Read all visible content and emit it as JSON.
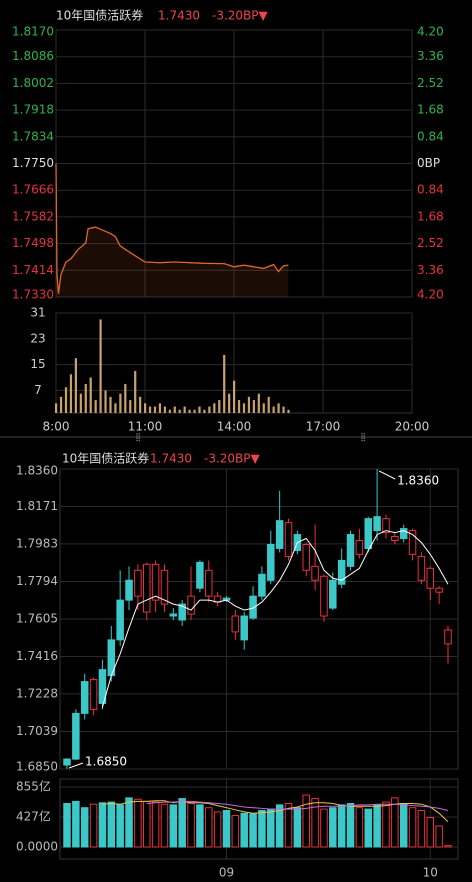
{
  "chart_data": [
    {
      "type": "line",
      "title": "10年国债活跃券",
      "last": "1.7430",
      "change": "-3.20BP▼",
      "x": [
        480,
        482,
        485,
        490,
        500,
        510,
        525,
        540,
        545,
        560,
        575,
        590,
        600,
        610,
        620,
        640,
        660,
        690,
        720,
        780,
        820,
        840,
        860,
        880,
        900,
        920,
        930,
        940,
        950
      ],
      "values": [
        1.775,
        1.74,
        1.734,
        1.74,
        1.744,
        1.745,
        1.748,
        1.75,
        1.7545,
        1.755,
        1.754,
        1.753,
        1.752,
        1.749,
        1.748,
        1.746,
        1.744,
        1.7438,
        1.744,
        1.7436,
        1.7435,
        1.7425,
        1.743,
        1.7425,
        1.742,
        1.7432,
        1.741,
        1.7428,
        1.743
      ],
      "color": "#e0652a",
      "up_color": "#2fb34a",
      "down_color": "#e8323c",
      "grid": true,
      "xlim": [
        480,
        1200
      ],
      "xticks": [
        {
          "value": 480,
          "label": "8:00"
        },
        {
          "value": 660,
          "label": "11:00"
        },
        {
          "value": 840,
          "label": "14:00"
        },
        {
          "value": 1020,
          "label": "17:00"
        },
        {
          "value": 1200,
          "label": "20:00"
        }
      ],
      "ylim": [
        1.733,
        1.817
      ],
      "yticks": [
        {
          "value": 1.817,
          "label": "1.8170"
        },
        1.8086,
        1.8002,
        1.7918,
        1.7834,
        {
          "value": 1.775,
          "label": "1.7750"
        },
        1.7666,
        1.7582,
        1.7498,
        1.7414,
        {
          "value": 1.733,
          "label": "1.7330"
        }
      ],
      "y2lim": [
        -4.2,
        4.2
      ],
      "y2ticks": [
        {
          "value": 4.2,
          "label": "4.20"
        },
        3.36,
        2.52,
        1.68,
        0.84,
        {
          "value": 0,
          "label": "0BP"
        },
        {
          "value": -0.84,
          "label": "0.84"
        },
        {
          "value": -1.68,
          "label": "1.68"
        },
        {
          "value": -2.52,
          "label": "2.52"
        },
        {
          "value": -3.36,
          "label": "3.36"
        },
        {
          "value": -4.2,
          "label": "4.20"
        }
      ]
    },
    {
      "type": "bar",
      "color": "#c9a36c",
      "x": [
        480,
        490,
        500,
        510,
        520,
        530,
        540,
        550,
        560,
        570,
        580,
        590,
        600,
        610,
        620,
        630,
        640,
        650,
        660,
        670,
        680,
        690,
        700,
        710,
        720,
        730,
        740,
        750,
        760,
        770,
        780,
        790,
        800,
        810,
        820,
        830,
        840,
        850,
        860,
        870,
        880,
        890,
        900,
        910,
        920,
        930,
        940,
        950
      ],
      "values": [
        3,
        5,
        8,
        12,
        17,
        6,
        9,
        11,
        4,
        29,
        7,
        5,
        3,
        6,
        9,
        4,
        13,
        5,
        3,
        2,
        2,
        3,
        2,
        1,
        2,
        1,
        2,
        1,
        1,
        2,
        1,
        2,
        3,
        4,
        18,
        6,
        10,
        4,
        3,
        5,
        4,
        6,
        3,
        5,
        2,
        3,
        2,
        1
      ],
      "xlim": [
        480,
        1200
      ],
      "ylim": [
        0,
        31
      ],
      "yticks": [
        7,
        15,
        23,
        31
      ]
    },
    {
      "type": "candlestick",
      "title": "10年国债活跃券",
      "last": "1.7430",
      "change": "-3.20BP▼",
      "categories": [
        null,
        null,
        null,
        null,
        null,
        null,
        null,
        null,
        null,
        null,
        null,
        null,
        null,
        null,
        null,
        null,
        null,
        null,
        "09",
        null,
        null,
        null,
        null,
        null,
        null,
        null,
        null,
        null,
        null,
        null,
        null,
        null,
        null,
        null,
        null,
        null,
        null,
        null,
        null,
        null,
        null,
        "10",
        null,
        null
      ],
      "open": [
        1.687,
        1.69,
        1.713,
        1.73,
        1.718,
        1.732,
        1.75,
        1.77,
        1.785,
        1.788,
        1.788,
        1.785,
        1.762,
        1.76,
        1.772,
        1.776,
        1.785,
        1.772,
        1.77,
        1.762,
        1.75,
        1.761,
        1.772,
        1.78,
        1.796,
        1.809,
        1.795,
        1.798,
        1.787,
        1.782,
        1.766,
        1.778,
        1.787,
        1.8,
        1.796,
        1.805,
        1.811,
        1.802,
        1.801,
        1.805,
        1.792,
        1.786,
        1.776,
        1.755
      ],
      "close": [
        1.69,
        1.713,
        1.729,
        1.715,
        1.735,
        1.75,
        1.77,
        1.78,
        1.772,
        1.764,
        1.77,
        1.768,
        1.763,
        1.768,
        1.763,
        1.789,
        1.772,
        1.769,
        1.771,
        1.754,
        1.762,
        1.772,
        1.783,
        1.798,
        1.81,
        1.792,
        1.803,
        1.785,
        1.78,
        1.762,
        1.78,
        1.79,
        1.803,
        1.793,
        1.811,
        1.812,
        1.804,
        1.8,
        1.806,
        1.793,
        1.78,
        1.776,
        1.774,
        1.748
      ],
      "high": [
        1.6905,
        1.715,
        1.733,
        1.731,
        1.74,
        1.757,
        1.785,
        1.787,
        1.788,
        1.789,
        1.79,
        1.788,
        1.766,
        1.77,
        1.787,
        1.79,
        1.79,
        1.774,
        1.772,
        1.765,
        1.764,
        1.777,
        1.787,
        1.805,
        1.825,
        1.811,
        1.805,
        1.799,
        1.808,
        1.783,
        1.784,
        1.796,
        1.805,
        1.806,
        1.812,
        1.836,
        1.813,
        1.804,
        1.808,
        1.806,
        1.794,
        1.787,
        1.777,
        1.757
      ],
      "low": [
        1.685,
        1.6895,
        1.71,
        1.712,
        1.715,
        1.729,
        1.747,
        1.765,
        1.765,
        1.76,
        1.764,
        1.764,
        1.76,
        1.757,
        1.76,
        1.774,
        1.769,
        1.767,
        1.769,
        1.75,
        1.745,
        1.76,
        1.77,
        1.778,
        1.794,
        1.79,
        1.793,
        1.782,
        1.775,
        1.759,
        1.765,
        1.776,
        1.785,
        1.791,
        1.794,
        1.8,
        1.801,
        1.798,
        1.799,
        1.79,
        1.778,
        1.77,
        1.768,
        1.738
      ],
      "ma": {
        "color": "#ffffff",
        "values": [
          null,
          null,
          null,
          null,
          1.716,
          1.732,
          1.743,
          1.756,
          1.768,
          1.77,
          1.772,
          1.77,
          1.768,
          1.767,
          1.765,
          1.77,
          1.77,
          1.769,
          1.77,
          1.767,
          1.765,
          1.766,
          1.769,
          1.774,
          1.78,
          1.788,
          1.799,
          1.801,
          1.795,
          1.785,
          1.781,
          1.78,
          1.783,
          1.786,
          1.795,
          1.803,
          1.805,
          1.804,
          1.805,
          1.803,
          1.799,
          1.793,
          1.786,
          1.778
        ]
      },
      "annotations": [
        "1.8360",
        "1.6850"
      ],
      "up_color": "#3cc8c8",
      "down_color": "#e8323c",
      "grid": true,
      "ylim": [
        1.685,
        1.836
      ],
      "yticks": [
        {
          "value": 1.836,
          "label": "1.8360"
        },
        1.8171,
        1.7983,
        1.7794,
        1.7605,
        1.7416,
        1.7228,
        1.7039,
        {
          "value": 1.685,
          "label": "1.6850"
        }
      ]
    },
    {
      "type": "bar",
      "values": [
        620,
        650,
        560,
        610,
        630,
        640,
        600,
        700,
        680,
        650,
        640,
        610,
        600,
        690,
        620,
        600,
        560,
        500,
        520,
        450,
        480,
        470,
        520,
        540,
        600,
        620,
        560,
        740,
        690,
        540,
        560,
        600,
        620,
        560,
        540,
        600,
        640,
        700,
        620,
        560,
        520,
        420,
        300,
        20
      ],
      "lines": [
        {
          "color": "#e8c84a",
          "values": [
            null,
            null,
            null,
            null,
            610,
            620,
            610,
            640,
            650,
            650,
            660,
            660,
            630,
            650,
            630,
            630,
            620,
            590,
            560,
            530,
            500,
            480,
            490,
            500,
            520,
            550,
            570,
            610,
            630,
            630,
            620,
            590,
            580,
            580,
            580,
            580,
            590,
            610,
            620,
            620,
            610,
            570,
            480,
            360
          ]
        },
        {
          "color": "#c86ad8",
          "values": [
            null,
            null,
            null,
            null,
            null,
            null,
            null,
            null,
            null,
            620,
            630,
            640,
            640,
            650,
            650,
            640,
            630,
            620,
            610,
            590,
            570,
            560,
            550,
            540,
            540,
            540,
            540,
            550,
            570,
            580,
            580,
            580,
            590,
            600,
            600,
            610,
            610,
            610,
            600,
            590,
            580,
            570,
            550,
            520
          ]
        }
      ],
      "ylim": [
        0,
        855
      ],
      "yticks": [
        {
          "value": 855,
          "label": "855亿"
        },
        {
          "value": 427,
          "label": "427亿"
        },
        {
          "value": 0,
          "label": "0.0000"
        }
      ]
    }
  ]
}
